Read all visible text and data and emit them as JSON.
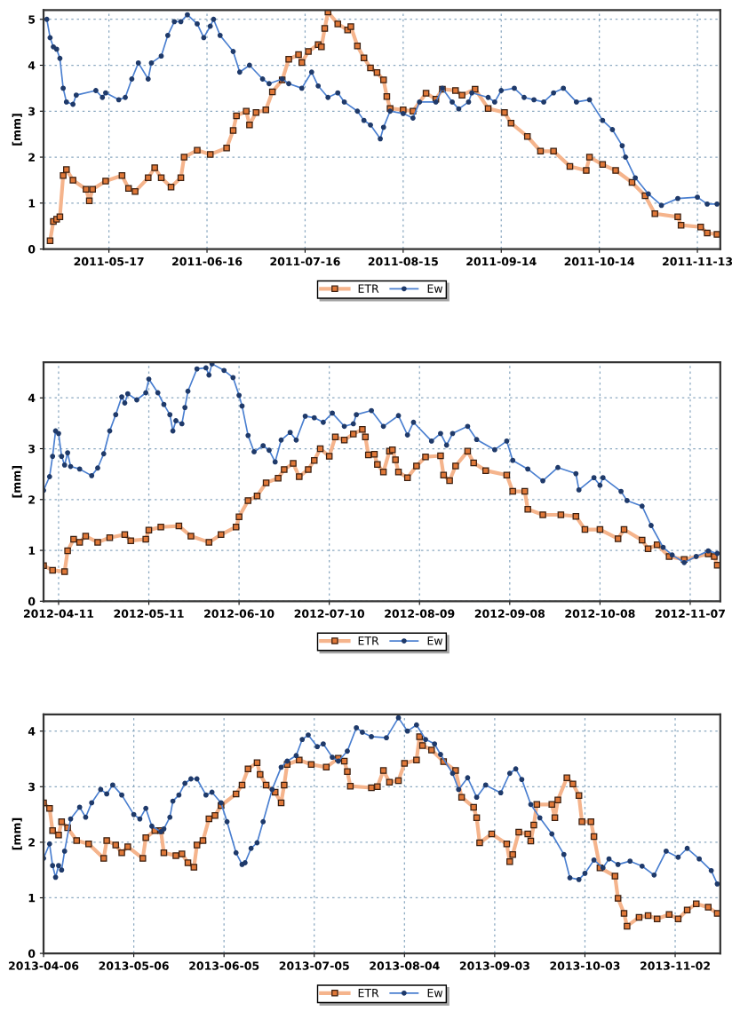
{
  "chart_data": [
    {
      "type": "line",
      "ylabel": "[mm]",
      "xlim": [
        "2011-04-27",
        "2011-11-20"
      ],
      "ylim": [
        0,
        5.2
      ],
      "yticks": [
        0,
        1,
        2,
        3,
        4,
        5
      ],
      "xticks": [
        "2011-05-17",
        "2011-06-16",
        "2011-07-16",
        "2011-08-15",
        "2011-09-14",
        "2011-10-14",
        "2011-11-13"
      ],
      "grid": true,
      "legend": "bottom",
      "line_style": "solid",
      "series": [
        {
          "name": "ETR",
          "color": "#f5b48c",
          "marker": "square",
          "x": [
            "2011-04-29",
            "2011-04-30",
            "2011-05-01",
            "2011-05-02",
            "2011-05-03",
            "2011-05-04",
            "2011-05-06",
            "2011-05-10",
            "2011-05-11",
            "2011-05-12",
            "2011-05-16",
            "2011-05-21",
            "2011-05-23",
            "2011-05-25",
            "2011-05-29",
            "2011-05-31",
            "2011-06-02",
            "2011-06-05",
            "2011-06-08",
            "2011-06-09",
            "2011-06-13",
            "2011-06-17",
            "2011-06-22",
            "2011-06-24",
            "2011-06-25",
            "2011-06-28",
            "2011-06-29",
            "2011-07-01",
            "2011-07-04",
            "2011-07-06",
            "2011-07-09",
            "2011-07-11",
            "2011-07-14",
            "2011-07-15",
            "2011-07-17",
            "2011-07-20",
            "2011-07-21",
            "2011-07-22",
            "2011-07-23",
            "2011-07-26",
            "2011-07-29",
            "2011-07-30",
            "2011-08-01",
            "2011-08-03",
            "2011-08-05",
            "2011-08-07",
            "2011-08-09",
            "2011-08-10",
            "2011-08-11",
            "2011-08-15",
            "2011-08-18",
            "2011-08-22",
            "2011-08-25",
            "2011-08-27",
            "2011-08-31",
            "2011-09-02",
            "2011-09-06",
            "2011-09-10",
            "2011-09-15",
            "2011-09-17",
            "2011-09-22",
            "2011-09-26",
            "2011-09-30",
            "2011-10-05",
            "2011-10-10",
            "2011-10-11",
            "2011-10-15",
            "2011-10-19",
            "2011-10-24",
            "2011-10-28",
            "2011-10-31",
            "2011-11-07",
            "2011-11-08",
            "2011-11-14",
            "2011-11-16",
            "2011-11-19"
          ],
          "values": [
            0.18,
            0.6,
            0.65,
            0.7,
            1.6,
            1.73,
            1.5,
            1.3,
            1.05,
            1.3,
            1.48,
            1.6,
            1.32,
            1.25,
            1.55,
            1.77,
            1.55,
            1.35,
            1.55,
            2.0,
            2.15,
            2.06,
            2.2,
            2.58,
            2.9,
            3.0,
            2.7,
            2.97,
            3.03,
            3.42,
            3.68,
            4.13,
            4.23,
            4.06,
            4.3,
            4.45,
            4.4,
            4.8,
            5.16,
            4.9,
            4.77,
            4.84,
            4.42,
            4.16,
            3.94,
            3.84,
            3.68,
            3.32,
            3.06,
            3.03,
            3.0,
            3.39,
            3.26,
            3.48,
            3.45,
            3.35,
            3.48,
            3.06,
            2.97,
            2.74,
            2.45,
            2.13,
            2.13,
            1.8,
            1.71,
            2.0,
            1.84,
            1.71,
            1.45,
            1.16,
            0.77,
            0.7,
            0.52,
            0.48,
            0.35,
            0.32
          ]
        },
        {
          "name": "Ew",
          "color": "#4a7fd0",
          "marker": "circle",
          "x": [
            "2011-04-28",
            "2011-04-29",
            "2011-04-30",
            "2011-05-01",
            "2011-05-02",
            "2011-05-03",
            "2011-05-04",
            "2011-05-06",
            "2011-05-07",
            "2011-05-13",
            "2011-05-15",
            "2011-05-16",
            "2011-05-20",
            "2011-05-22",
            "2011-05-24",
            "2011-05-26",
            "2011-05-29",
            "2011-05-30",
            "2011-06-02",
            "2011-06-04",
            "2011-06-06",
            "2011-06-08",
            "2011-06-10",
            "2011-06-13",
            "2011-06-15",
            "2011-06-17",
            "2011-06-18",
            "2011-06-20",
            "2011-06-24",
            "2011-06-26",
            "2011-06-29",
            "2011-07-03",
            "2011-07-05",
            "2011-07-09",
            "2011-07-11",
            "2011-07-15",
            "2011-07-18",
            "2011-07-20",
            "2011-07-23",
            "2011-07-26",
            "2011-07-28",
            "2011-08-01",
            "2011-08-03",
            "2011-08-05",
            "2011-08-08",
            "2011-08-09",
            "2011-08-11",
            "2011-08-15",
            "2011-08-18",
            "2011-08-20",
            "2011-08-25",
            "2011-08-27",
            "2011-08-30",
            "2011-09-01",
            "2011-09-04",
            "2011-09-05",
            "2011-09-10",
            "2011-09-12",
            "2011-09-14",
            "2011-09-18",
            "2011-09-21",
            "2011-09-24",
            "2011-09-27",
            "2011-09-30",
            "2011-10-03",
            "2011-10-07",
            "2011-10-11",
            "2011-10-15",
            "2011-10-18",
            "2011-10-21",
            "2011-10-22",
            "2011-10-25",
            "2011-10-29",
            "2011-11-02",
            "2011-11-07",
            "2011-11-13",
            "2011-11-16",
            "2011-11-19"
          ],
          "values": [
            5.0,
            4.6,
            4.4,
            4.35,
            4.15,
            3.5,
            3.2,
            3.15,
            3.35,
            3.45,
            3.3,
            3.4,
            3.25,
            3.3,
            3.7,
            4.05,
            3.7,
            4.05,
            4.2,
            4.65,
            4.95,
            4.95,
            5.1,
            4.9,
            4.6,
            4.85,
            5.0,
            4.65,
            4.3,
            3.85,
            4.0,
            3.7,
            3.6,
            3.7,
            3.6,
            3.5,
            3.85,
            3.55,
            3.3,
            3.4,
            3.2,
            3.0,
            2.8,
            2.7,
            2.4,
            2.65,
            3.0,
            2.95,
            2.85,
            3.2,
            3.2,
            3.5,
            3.2,
            3.05,
            3.2,
            3.4,
            3.3,
            3.2,
            3.45,
            3.5,
            3.3,
            3.25,
            3.2,
            3.4,
            3.5,
            3.2,
            3.25,
            2.8,
            2.6,
            2.25,
            2.0,
            1.55,
            1.2,
            0.95,
            1.1,
            1.13,
            0.98,
            0.98
          ]
        }
      ]
    },
    {
      "type": "line",
      "ylabel": "[mm]",
      "xlim": [
        "2012-04-06",
        "2012-11-17"
      ],
      "ylim": [
        0,
        4.7
      ],
      "yticks": [
        0,
        1,
        2,
        3,
        4
      ],
      "xticks": [
        "2012-04-11",
        "2012-05-11",
        "2012-06-10",
        "2012-07-10",
        "2012-08-09",
        "2012-09-08",
        "2012-10-08",
        "2012-11-07"
      ],
      "grid": true,
      "legend": "bottom",
      "line_style": "solid",
      "series": [
        {
          "name": "ETR",
          "color": "#f5b48c",
          "marker": "square",
          "x": [
            "2012-04-06",
            "2012-04-09",
            "2012-04-13",
            "2012-04-14",
            "2012-04-16",
            "2012-04-18",
            "2012-04-20",
            "2012-04-24",
            "2012-04-28",
            "2012-05-03",
            "2012-05-05",
            "2012-05-10",
            "2012-05-11",
            "2012-05-15",
            "2012-05-21",
            "2012-05-25",
            "2012-05-31",
            "2012-06-04",
            "2012-06-09",
            "2012-06-10",
            "2012-06-13",
            "2012-06-16",
            "2012-06-19",
            "2012-06-23",
            "2012-06-25",
            "2012-06-28",
            "2012-06-30",
            "2012-07-03",
            "2012-07-05",
            "2012-07-07",
            "2012-07-10",
            "2012-07-12",
            "2012-07-15",
            "2012-07-18",
            "2012-07-21",
            "2012-07-22",
            "2012-07-23",
            "2012-07-25",
            "2012-07-26",
            "2012-07-28",
            "2012-07-30",
            "2012-07-31",
            "2012-08-01",
            "2012-08-02",
            "2012-08-05",
            "2012-08-08",
            "2012-08-11",
            "2012-08-16",
            "2012-08-17",
            "2012-08-19",
            "2012-08-21",
            "2012-08-25",
            "2012-08-27",
            "2012-08-31",
            "2012-09-07",
            "2012-09-09",
            "2012-09-13",
            "2012-09-14",
            "2012-09-19",
            "2012-09-25",
            "2012-09-30",
            "2012-10-03",
            "2012-10-08",
            "2012-10-14",
            "2012-10-16",
            "2012-10-22",
            "2012-10-24",
            "2012-10-27",
            "2012-10-31",
            "2012-11-05",
            "2012-11-13",
            "2012-11-15",
            "2012-11-16"
          ],
          "values": [
            0.7,
            0.61,
            0.58,
            0.99,
            1.22,
            1.16,
            1.28,
            1.16,
            1.25,
            1.31,
            1.19,
            1.22,
            1.4,
            1.46,
            1.48,
            1.28,
            1.16,
            1.31,
            1.46,
            1.66,
            1.98,
            2.07,
            2.33,
            2.42,
            2.59,
            2.71,
            2.45,
            2.59,
            2.77,
            3.0,
            2.85,
            3.23,
            3.17,
            3.29,
            3.38,
            3.23,
            2.88,
            2.89,
            2.69,
            2.54,
            2.95,
            2.98,
            2.78,
            2.54,
            2.43,
            2.66,
            2.84,
            2.86,
            2.48,
            2.37,
            2.66,
            2.95,
            2.72,
            2.57,
            2.48,
            2.16,
            2.16,
            1.81,
            1.7,
            1.7,
            1.67,
            1.41,
            1.41,
            1.23,
            1.41,
            1.2,
            1.03,
            1.11,
            0.88,
            0.82,
            0.93,
            0.88,
            0.71
          ]
        },
        {
          "name": "Ew",
          "color": "#4a7fd0",
          "marker": "circle",
          "x": [
            "2012-04-06",
            "2012-04-08",
            "2012-04-09",
            "2012-04-10",
            "2012-04-11",
            "2012-04-12",
            "2012-04-13",
            "2012-04-14",
            "2012-04-15",
            "2012-04-18",
            "2012-04-22",
            "2012-04-24",
            "2012-04-26",
            "2012-04-28",
            "2012-04-30",
            "2012-05-02",
            "2012-05-03",
            "2012-05-04",
            "2012-05-07",
            "2012-05-10",
            "2012-05-11",
            "2012-05-14",
            "2012-05-16",
            "2012-05-18",
            "2012-05-19",
            "2012-05-20",
            "2012-05-22",
            "2012-05-23",
            "2012-05-24",
            "2012-05-27",
            "2012-05-30",
            "2012-05-31",
            "2012-06-01",
            "2012-06-05",
            "2012-06-08",
            "2012-06-10",
            "2012-06-11",
            "2012-06-13",
            "2012-06-15",
            "2012-06-18",
            "2012-06-20",
            "2012-06-22",
            "2012-06-24",
            "2012-06-27",
            "2012-06-29",
            "2012-07-02",
            "2012-07-05",
            "2012-07-08",
            "2012-07-11",
            "2012-07-15",
            "2012-07-18",
            "2012-07-19",
            "2012-07-24",
            "2012-07-28",
            "2012-08-02",
            "2012-08-05",
            "2012-08-07",
            "2012-08-13",
            "2012-08-16",
            "2012-08-18",
            "2012-08-20",
            "2012-08-25",
            "2012-08-28",
            "2012-09-03",
            "2012-09-07",
            "2012-09-09",
            "2012-09-14",
            "2012-09-19",
            "2012-09-24",
            "2012-09-30",
            "2012-10-01",
            "2012-10-06",
            "2012-10-08",
            "2012-10-09",
            "2012-10-15",
            "2012-10-17",
            "2012-10-22",
            "2012-10-25",
            "2012-10-29",
            "2012-11-01",
            "2012-11-05",
            "2012-11-09",
            "2012-11-13",
            "2012-11-16"
          ],
          "values": [
            2.18,
            2.45,
            2.85,
            3.35,
            3.3,
            2.85,
            2.68,
            2.92,
            2.65,
            2.6,
            2.47,
            2.62,
            2.9,
            3.35,
            3.67,
            4.02,
            3.9,
            4.08,
            3.96,
            4.1,
            4.37,
            4.1,
            3.87,
            3.67,
            3.35,
            3.55,
            3.49,
            3.81,
            4.13,
            4.57,
            4.59,
            4.45,
            4.67,
            4.54,
            4.4,
            4.05,
            3.84,
            3.26,
            2.94,
            3.06,
            2.97,
            2.74,
            3.17,
            3.32,
            3.17,
            3.64,
            3.61,
            3.52,
            3.7,
            3.44,
            3.49,
            3.67,
            3.75,
            3.44,
            3.65,
            3.27,
            3.52,
            3.15,
            3.3,
            3.07,
            3.3,
            3.44,
            3.18,
            2.98,
            3.15,
            2.77,
            2.6,
            2.37,
            2.63,
            2.51,
            2.19,
            2.43,
            2.28,
            2.43,
            2.16,
            1.98,
            1.87,
            1.49,
            1.06,
            0.91,
            0.76,
            0.88,
            0.99,
            0.94
          ]
        }
      ]
    },
    {
      "type": "line",
      "ylabel": "[mm]",
      "xlim": [
        "2013-04-06",
        "2013-11-17"
      ],
      "ylim": [
        0,
        4.3
      ],
      "yticks": [
        0,
        1,
        2,
        3,
        4
      ],
      "xticks": [
        "2013-04-06",
        "2013-05-06",
        "2013-06-05",
        "2013-07-05",
        "2013-08-04",
        "2013-09-03",
        "2013-10-03",
        "2013-11-02"
      ],
      "grid": true,
      "legend": "bottom",
      "line_style": "solid",
      "series": [
        {
          "name": "ETR",
          "color": "#f5b48c",
          "marker": "square",
          "x": [
            "2013-04-06",
            "2013-04-08",
            "2013-04-09",
            "2013-04-11",
            "2013-04-12",
            "2013-04-14",
            "2013-04-17",
            "2013-04-21",
            "2013-04-26",
            "2013-04-27",
            "2013-04-30",
            "2013-05-02",
            "2013-05-04",
            "2013-05-09",
            "2013-05-10",
            "2013-05-13",
            "2013-05-15",
            "2013-05-16",
            "2013-05-20",
            "2013-05-22",
            "2013-05-24",
            "2013-05-26",
            "2013-05-27",
            "2013-05-29",
            "2013-05-31",
            "2013-06-02",
            "2013-06-04",
            "2013-06-09",
            "2013-06-11",
            "2013-06-13",
            "2013-06-16",
            "2013-06-17",
            "2013-06-19",
            "2013-06-22",
            "2013-06-24",
            "2013-06-25",
            "2013-06-26",
            "2013-06-30",
            "2013-07-04",
            "2013-07-09",
            "2013-07-13",
            "2013-07-15",
            "2013-07-16",
            "2013-07-17",
            "2013-07-24",
            "2013-07-26",
            "2013-07-28",
            "2013-07-30",
            "2013-08-02",
            "2013-08-04",
            "2013-08-08",
            "2013-08-09",
            "2013-08-10",
            "2013-08-13",
            "2013-08-17",
            "2013-08-21",
            "2013-08-23",
            "2013-08-27",
            "2013-08-28",
            "2013-08-29",
            "2013-09-02",
            "2013-09-07",
            "2013-09-08",
            "2013-09-09",
            "2013-09-11",
            "2013-09-14",
            "2013-09-15",
            "2013-09-16",
            "2013-09-17",
            "2013-09-22",
            "2013-09-23",
            "2013-09-24",
            "2013-09-27",
            "2013-09-29",
            "2013-10-01",
            "2013-10-02",
            "2013-10-05",
            "2013-10-06",
            "2013-10-08",
            "2013-10-13",
            "2013-10-14",
            "2013-10-16",
            "2013-10-17",
            "2013-10-21",
            "2013-10-24",
            "2013-10-27",
            "2013-10-31",
            "2013-11-03",
            "2013-11-06",
            "2013-11-09",
            "2013-11-13",
            "2013-11-16"
          ],
          "values": [
            2.71,
            2.61,
            2.21,
            2.13,
            2.37,
            2.26,
            2.03,
            1.97,
            1.71,
            2.03,
            1.95,
            1.81,
            1.92,
            1.71,
            2.08,
            2.21,
            2.21,
            1.81,
            1.76,
            1.79,
            1.63,
            1.55,
            1.95,
            2.03,
            2.42,
            2.48,
            2.66,
            2.87,
            3.03,
            3.32,
            3.43,
            3.22,
            3.03,
            2.9,
            2.71,
            3.03,
            3.4,
            3.48,
            3.4,
            3.35,
            3.51,
            3.46,
            3.27,
            3.01,
            2.98,
            3.0,
            3.29,
            3.08,
            3.11,
            3.42,
            3.48,
            3.9,
            3.74,
            3.66,
            3.45,
            3.29,
            2.81,
            2.63,
            2.44,
            1.99,
            2.15,
            1.97,
            1.65,
            1.78,
            2.18,
            2.15,
            2.02,
            2.31,
            2.68,
            2.68,
            2.44,
            2.76,
            3.16,
            3.05,
            2.84,
            2.37,
            2.37,
            2.1,
            1.54,
            1.39,
            0.99,
            0.72,
            0.49,
            0.65,
            0.68,
            0.62,
            0.7,
            0.62,
            0.78,
            0.89,
            0.83,
            0.72
          ]
        },
        {
          "name": "Ew",
          "color": "#4a7fd0",
          "marker": "circle",
          "x": [
            "2013-04-06",
            "2013-04-08",
            "2013-04-09",
            "2013-04-10",
            "2013-04-11",
            "2013-04-12",
            "2013-04-13",
            "2013-04-15",
            "2013-04-18",
            "2013-04-20",
            "2013-04-22",
            "2013-04-25",
            "2013-04-27",
            "2013-04-29",
            "2013-05-02",
            "2013-05-06",
            "2013-05-08",
            "2013-05-10",
            "2013-05-12",
            "2013-05-15",
            "2013-05-16",
            "2013-05-18",
            "2013-05-19",
            "2013-05-21",
            "2013-05-23",
            "2013-05-25",
            "2013-05-27",
            "2013-05-30",
            "2013-06-01",
            "2013-06-04",
            "2013-06-06",
            "2013-06-09",
            "2013-06-11",
            "2013-06-12",
            "2013-06-14",
            "2013-06-16",
            "2013-06-18",
            "2013-06-21",
            "2013-06-24",
            "2013-06-26",
            "2013-06-29",
            "2013-07-01",
            "2013-07-03",
            "2013-07-06",
            "2013-07-08",
            "2013-07-11",
            "2013-07-13",
            "2013-07-16",
            "2013-07-19",
            "2013-07-21",
            "2013-07-24",
            "2013-07-29",
            "2013-08-02",
            "2013-08-05",
            "2013-08-08",
            "2013-08-11",
            "2013-08-14",
            "2013-08-16",
            "2013-08-20",
            "2013-08-22",
            "2013-08-25",
            "2013-08-28",
            "2013-08-31",
            "2013-09-05",
            "2013-09-08",
            "2013-09-10",
            "2013-09-12",
            "2013-09-15",
            "2013-09-18",
            "2013-09-22",
            "2013-09-26",
            "2013-09-28",
            "2013-10-01",
            "2013-10-03",
            "2013-10-06",
            "2013-10-09",
            "2013-10-11",
            "2013-10-14",
            "2013-10-18",
            "2013-10-22",
            "2013-10-26",
            "2013-10-30",
            "2013-11-03",
            "2013-11-06",
            "2013-11-10",
            "2013-11-14",
            "2013-11-16"
          ],
          "values": [
            1.71,
            1.97,
            1.58,
            1.37,
            1.58,
            1.5,
            1.84,
            2.42,
            2.63,
            2.45,
            2.71,
            2.95,
            2.87,
            3.03,
            2.85,
            2.5,
            2.42,
            2.61,
            2.29,
            2.19,
            2.24,
            2.45,
            2.74,
            2.85,
            3.06,
            3.14,
            3.14,
            2.85,
            2.9,
            2.71,
            2.37,
            1.81,
            1.6,
            1.63,
            1.89,
            1.99,
            2.37,
            2.95,
            3.35,
            3.46,
            3.56,
            3.85,
            3.93,
            3.72,
            3.77,
            3.53,
            3.46,
            3.64,
            4.06,
            3.98,
            3.9,
            3.88,
            4.24,
            4.0,
            4.11,
            3.85,
            3.77,
            3.58,
            3.24,
            2.95,
            3.16,
            2.81,
            3.03,
            2.89,
            3.24,
            3.32,
            3.13,
            2.68,
            2.44,
            2.15,
            1.78,
            1.36,
            1.33,
            1.44,
            1.68,
            1.54,
            1.7,
            1.6,
            1.66,
            1.57,
            1.41,
            1.84,
            1.73,
            1.89,
            1.7,
            1.49,
            1.25
          ]
        }
      ]
    }
  ]
}
